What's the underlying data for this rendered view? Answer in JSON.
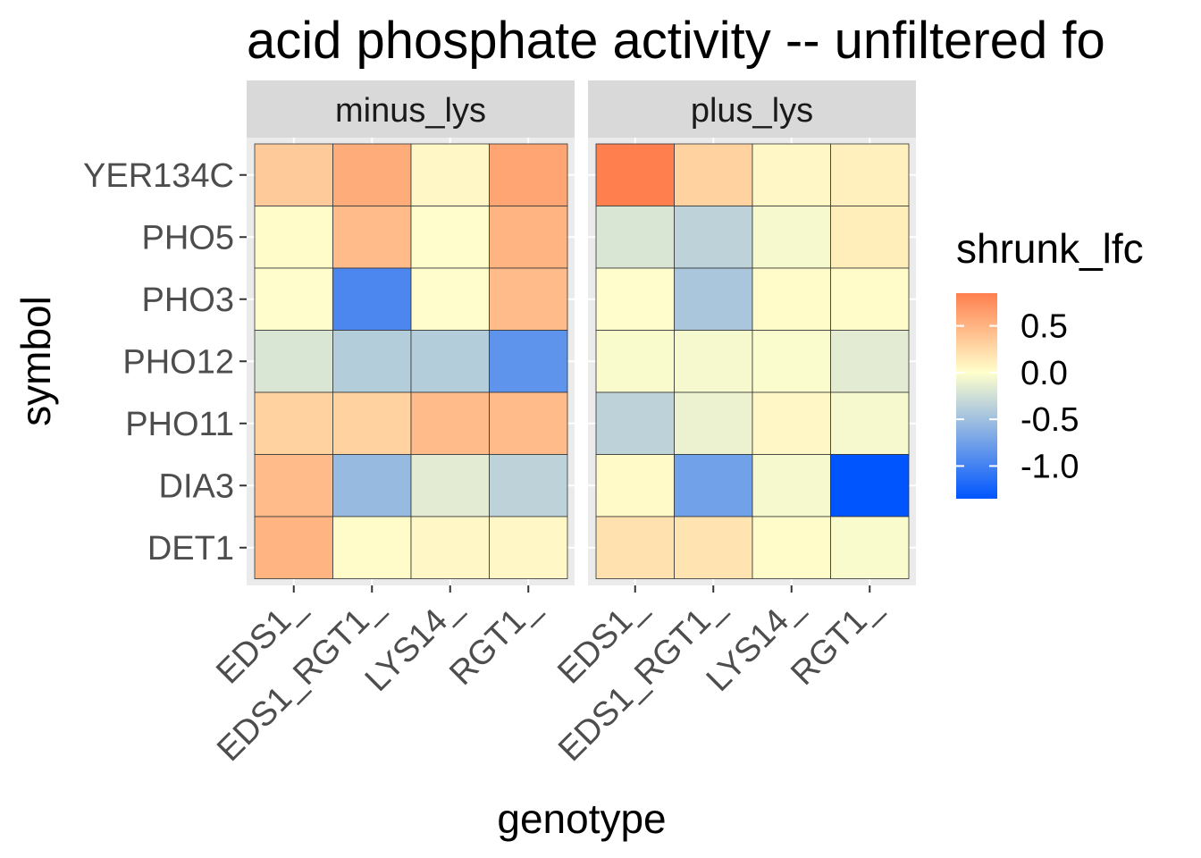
{
  "chart_data": {
    "type": "heatmap",
    "title": "acid phosphate activity -- unfiltered fo",
    "xlabel": "genotype",
    "ylabel": "symbol",
    "facets": [
      "minus_lys",
      "plus_lys"
    ],
    "x_categories": [
      "EDS1_",
      "EDS1_RGT1_",
      "LYS14_",
      "RGT1_"
    ],
    "y_categories": [
      "YER134C",
      "PHO5",
      "PHO3",
      "PHO12",
      "PHO11",
      "DIA3",
      "DET1"
    ],
    "values": {
      "minus_lys": [
        [
          0.35,
          0.55,
          0.05,
          0.6
        ],
        [
          0.02,
          0.45,
          0.01,
          0.5
        ],
        [
          0.01,
          -0.95,
          0.01,
          0.45
        ],
        [
          -0.2,
          -0.4,
          -0.4,
          -0.85
        ],
        [
          0.3,
          0.3,
          0.45,
          0.45
        ],
        [
          0.45,
          -0.55,
          -0.15,
          -0.35
        ],
        [
          0.5,
          0.02,
          0.05,
          0.05
        ]
      ],
      "plus_lys": [
        [
          0.85,
          0.3,
          0.05,
          0.1
        ],
        [
          -0.2,
          -0.35,
          -0.05,
          0.12
        ],
        [
          0.01,
          -0.45,
          0.02,
          0.02
        ],
        [
          -0.03,
          -0.05,
          -0.02,
          -0.15
        ],
        [
          -0.35,
          -0.1,
          0.05,
          -0.05
        ],
        [
          0.03,
          -0.75,
          -0.05,
          -1.35
        ]
      ]
    },
    "plus_lys_det1": [
      0.2,
      0.18,
      0.02,
      -0.03
    ],
    "fill_legend": {
      "title": "shrunk_lfc",
      "breaks": [
        0.5,
        0.0,
        -0.5,
        -1.0
      ],
      "break_labels": [
        "0.5",
        "0.0",
        "-0.5",
        "-1.0"
      ],
      "range": [
        -1.35,
        0.85
      ],
      "low_color": "#0055ff",
      "mid_color": "#ffffcc",
      "high_color": "#ff7f4f"
    },
    "colors": {
      "panel_background": "#ebebeb",
      "grid": "#ffffff",
      "strip_background": "#d9d9d9",
      "tile_border": "#333333"
    },
    "grid": true,
    "legend_position": "right"
  }
}
